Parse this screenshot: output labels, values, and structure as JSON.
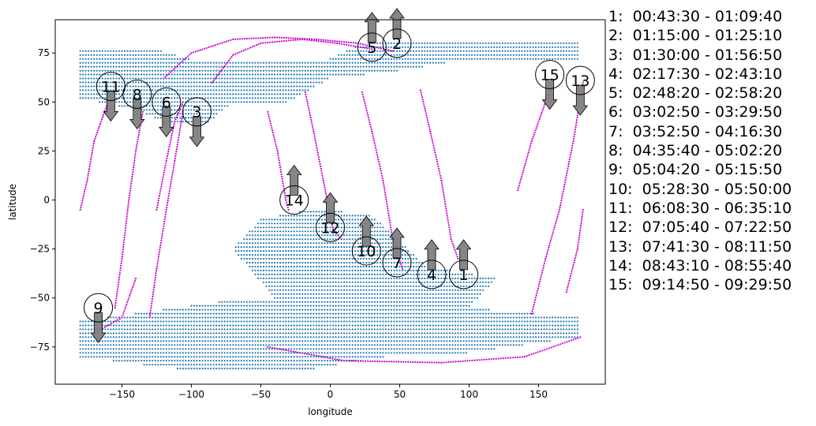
{
  "chart_data": {
    "type": "scatter",
    "xlabel": "longitude",
    "ylabel": "latitude",
    "xlim": [
      -198,
      198
    ],
    "ylim": [
      -94,
      92
    ],
    "xticks": [
      -150,
      -100,
      -50,
      0,
      50,
      100,
      150
    ],
    "yticks": [
      75,
      50,
      25,
      0,
      -25,
      -50,
      -75
    ],
    "grid": false,
    "colors": {
      "land": "#1f77b4",
      "track": "#cc00cc",
      "arrow": "#808080",
      "circle": "#000000"
    },
    "land_regions": [
      {
        "name": "north",
        "polygon": [
          [
            -180,
            77
          ],
          [
            -120,
            76
          ],
          [
            -100,
            72
          ],
          [
            -50,
            70
          ],
          [
            0,
            72
          ],
          [
            20,
            79
          ],
          [
            50,
            82
          ],
          [
            100,
            82
          ],
          [
            180,
            82
          ],
          [
            180,
            72
          ],
          [
            100,
            72
          ],
          [
            50,
            66
          ],
          [
            0,
            62
          ],
          [
            -30,
            50
          ],
          [
            -70,
            50
          ],
          [
            -90,
            38
          ],
          [
            -120,
            40
          ],
          [
            -140,
            46
          ],
          [
            -180,
            52
          ]
        ]
      },
      {
        "name": "south",
        "polygon": [
          [
            -180,
            -62
          ],
          [
            -120,
            -56
          ],
          [
            -80,
            -52
          ],
          [
            -40,
            -50
          ],
          [
            -70,
            -25
          ],
          [
            -50,
            -10
          ],
          [
            -10,
            -4
          ],
          [
            30,
            -8
          ],
          [
            70,
            -34
          ],
          [
            120,
            -40
          ],
          [
            100,
            -55
          ],
          [
            180,
            -60
          ],
          [
            180,
            -70
          ],
          [
            100,
            -78
          ],
          [
            40,
            -80
          ],
          [
            -20,
            -87
          ],
          [
            -100,
            -87
          ],
          [
            -180,
            -80
          ]
        ]
      }
    ],
    "tracks": [
      {
        "id": 1,
        "points": [
          [
            65,
            56
          ],
          [
            72,
            35
          ],
          [
            80,
            10
          ],
          [
            87,
            -20
          ],
          [
            92,
            -30
          ]
        ]
      },
      {
        "id": 2,
        "points": [
          [
            -120,
            62
          ],
          [
            -100,
            75
          ],
          [
            -70,
            82
          ],
          [
            -40,
            83
          ],
          [
            -10,
            82
          ],
          [
            20,
            80
          ],
          [
            45,
            76
          ]
        ]
      },
      {
        "id": 3,
        "points": [
          [
            -85,
            60
          ],
          [
            -70,
            74
          ],
          [
            -50,
            80
          ],
          [
            -20,
            82
          ],
          [
            5,
            80
          ],
          [
            30,
            77
          ]
        ]
      },
      {
        "id": 4,
        "points": [
          [
            23,
            55
          ],
          [
            30,
            35
          ],
          [
            38,
            10
          ],
          [
            45,
            -20
          ],
          [
            52,
            -35
          ]
        ]
      },
      {
        "id": 5,
        "points": [
          [
            -170,
            -68
          ],
          [
            -150,
            -60
          ],
          [
            -140,
            -40
          ]
        ]
      },
      {
        "id": 6,
        "points": [
          [
            -18,
            55
          ],
          [
            -12,
            35
          ],
          [
            -5,
            10
          ],
          [
            2,
            -15
          ],
          [
            8,
            -20
          ]
        ]
      },
      {
        "id": 7,
        "points": [
          [
            -45,
            -75
          ],
          [
            10,
            -82
          ],
          [
            80,
            -83
          ],
          [
            140,
            -80
          ],
          [
            180,
            -70
          ]
        ]
      },
      {
        "id": 8,
        "points": [
          [
            -45,
            45
          ],
          [
            -38,
            25
          ],
          [
            -32,
            0
          ],
          [
            -30,
            -5
          ]
        ]
      },
      {
        "id": 9,
        "points": [
          [
            -180,
            -5
          ],
          [
            -175,
            10
          ],
          [
            -170,
            30
          ],
          [
            -160,
            50
          ]
        ]
      },
      {
        "id": 10,
        "points": [
          [
            -155,
            -55
          ],
          [
            -150,
            -30
          ],
          [
            -145,
            0
          ],
          [
            -140,
            25
          ],
          [
            -135,
            45
          ]
        ]
      },
      {
        "id": 11,
        "points": [
          [
            -130,
            -60
          ],
          [
            -125,
            -35
          ],
          [
            -118,
            -5
          ],
          [
            -112,
            20
          ],
          [
            -106,
            45
          ]
        ]
      },
      {
        "id": 12,
        "points": [
          [
            -125,
            -5
          ],
          [
            -118,
            20
          ],
          [
            -112,
            40
          ],
          [
            -106,
            50
          ]
        ]
      },
      {
        "id": 13,
        "points": [
          [
            145,
            -58
          ],
          [
            155,
            -30
          ],
          [
            165,
            -5
          ],
          [
            175,
            30
          ],
          [
            182,
            60
          ]
        ]
      },
      {
        "id": 14,
        "points": [
          [
            135,
            5
          ],
          [
            145,
            30
          ],
          [
            155,
            50
          ],
          [
            160,
            58
          ]
        ]
      },
      {
        "id": 15,
        "points": [
          [
            170,
            -47
          ],
          [
            178,
            -25
          ],
          [
            182,
            -5
          ]
        ]
      }
    ],
    "markers": [
      {
        "label": "1",
        "lon": 96,
        "lat": -38,
        "dir": "up"
      },
      {
        "label": "2",
        "lon": 48,
        "lat": 80,
        "dir": "up"
      },
      {
        "label": "3",
        "lon": -96,
        "lat": 45,
        "dir": "down"
      },
      {
        "label": "4",
        "lon": 73,
        "lat": -38,
        "dir": "up"
      },
      {
        "label": "5",
        "lon": 30,
        "lat": 78,
        "dir": "up"
      },
      {
        "label": "6",
        "lon": -118,
        "lat": 50,
        "dir": "down"
      },
      {
        "label": "7",
        "lon": 48,
        "lat": -32,
        "dir": "up"
      },
      {
        "label": "8",
        "lon": -139,
        "lat": 54,
        "dir": "down"
      },
      {
        "label": "9",
        "lon": -167,
        "lat": -55,
        "dir": "down"
      },
      {
        "label": "10",
        "lon": 26,
        "lat": -26,
        "dir": "up"
      },
      {
        "label": "11",
        "lon": -158,
        "lat": 58,
        "dir": "down"
      },
      {
        "label": "12",
        "lon": 0,
        "lat": -14,
        "dir": "up"
      },
      {
        "label": "13",
        "lon": 180,
        "lat": 61,
        "dir": "down"
      },
      {
        "label": "14",
        "lon": -26,
        "lat": 0,
        "dir": "up"
      },
      {
        "label": "15",
        "lon": 158,
        "lat": 64,
        "dir": "down"
      }
    ],
    "legend": [
      "1:  00:43:30 - 01:09:40",
      "2:  01:15:00 - 01:25:10",
      "3:  01:30:00 - 01:56:50",
      "4:  02:17:30 - 02:43:10",
      "5:  02:48:20 - 02:58:20",
      "6:  03:02:50 - 03:29:50",
      "7:  03:52:50 - 04:16:30",
      "8:  04:35:40 - 05:02:20",
      "9:  05:04:20 - 05:15:50",
      "10:  05:28:30 - 05:50:00",
      "11:  06:08:30 - 06:35:10",
      "12:  07:05:40 - 07:22:50",
      "13:  07:41:30 - 08:11:50",
      "14:  08:43:10 - 08:55:40",
      "15:  09:14:50 - 09:29:50"
    ]
  }
}
